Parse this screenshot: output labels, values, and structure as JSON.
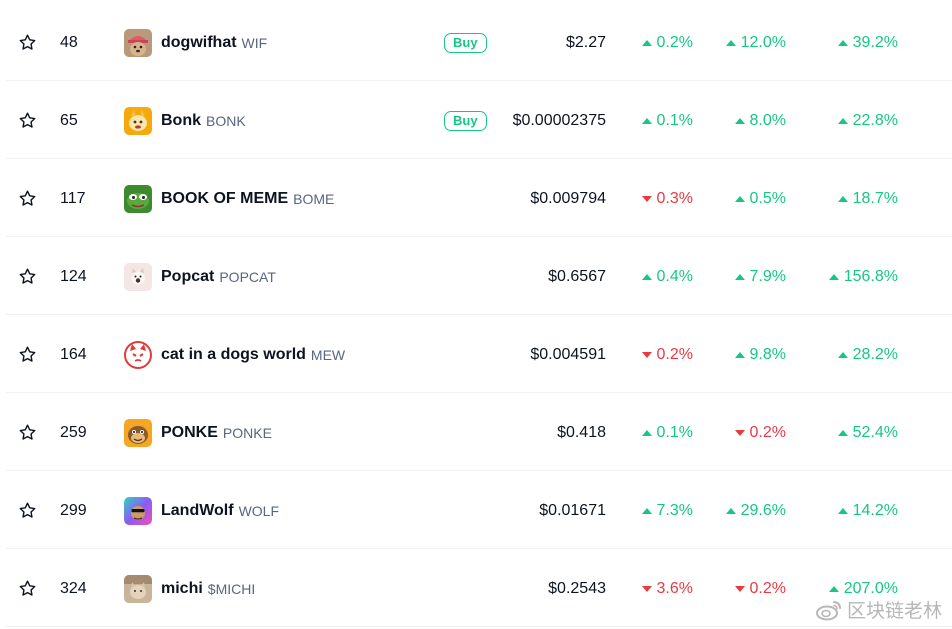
{
  "rows": [
    {
      "rank": "48",
      "name": "dogwifhat",
      "symbol": "WIF",
      "buy": "Buy",
      "price": "$2.27",
      "h1": {
        "value": "0.2%",
        "dir": "up"
      },
      "h24": {
        "value": "12.0%",
        "dir": "up"
      },
      "d7": {
        "value": "39.2%",
        "dir": "up"
      },
      "logo": "dogwifhat-logo"
    },
    {
      "rank": "65",
      "name": "Bonk",
      "symbol": "BONK",
      "buy": "Buy",
      "price": "$0.00002375",
      "h1": {
        "value": "0.1%",
        "dir": "up"
      },
      "h24": {
        "value": "8.0%",
        "dir": "up"
      },
      "d7": {
        "value": "22.8%",
        "dir": "up"
      },
      "logo": "bonk-logo"
    },
    {
      "rank": "117",
      "name": "BOOK OF MEME",
      "symbol": "BOME",
      "buy": "",
      "price": "$0.009794",
      "h1": {
        "value": "0.3%",
        "dir": "down"
      },
      "h24": {
        "value": "0.5%",
        "dir": "up"
      },
      "d7": {
        "value": "18.7%",
        "dir": "up"
      },
      "logo": "book-of-meme-logo"
    },
    {
      "rank": "124",
      "name": "Popcat",
      "symbol": "POPCAT",
      "buy": "",
      "price": "$0.6567",
      "h1": {
        "value": "0.4%",
        "dir": "up"
      },
      "h24": {
        "value": "7.9%",
        "dir": "up"
      },
      "d7": {
        "value": "156.8%",
        "dir": "up"
      },
      "logo": "popcat-logo"
    },
    {
      "rank": "164",
      "name": "cat in a dogs world",
      "symbol": "MEW",
      "buy": "",
      "price": "$0.004591",
      "h1": {
        "value": "0.2%",
        "dir": "down"
      },
      "h24": {
        "value": "9.8%",
        "dir": "up"
      },
      "d7": {
        "value": "28.2%",
        "dir": "up"
      },
      "logo": "mew-logo"
    },
    {
      "rank": "259",
      "name": "PONKE",
      "symbol": "PONKE",
      "buy": "",
      "price": "$0.418",
      "h1": {
        "value": "0.1%",
        "dir": "up"
      },
      "h24": {
        "value": "0.2%",
        "dir": "down"
      },
      "d7": {
        "value": "52.4%",
        "dir": "up"
      },
      "logo": "ponke-logo"
    },
    {
      "rank": "299",
      "name": "LandWolf",
      "symbol": "WOLF",
      "buy": "",
      "price": "$0.01671",
      "h1": {
        "value": "7.3%",
        "dir": "up"
      },
      "h24": {
        "value": "29.6%",
        "dir": "up"
      },
      "d7": {
        "value": "14.2%",
        "dir": "up"
      },
      "logo": "landwolf-logo"
    },
    {
      "rank": "324",
      "name": "michi",
      "symbol": "$MICHI",
      "buy": "",
      "price": "$0.2543",
      "h1": {
        "value": "3.6%",
        "dir": "down"
      },
      "h24": {
        "value": "0.2%",
        "dir": "down"
      },
      "d7": {
        "value": "207.0%",
        "dir": "up"
      },
      "logo": "michi-logo"
    }
  ],
  "watermark": "区块链老林",
  "colors": {
    "up": "#16c784",
    "down": "#ea3943",
    "text": "#0d1421",
    "muted": "#58667e"
  },
  "icons": {
    "watchlist": "star-outline-icon",
    "up": "caret-up-icon",
    "down": "caret-down-icon",
    "watermark": "weibo-icon"
  }
}
